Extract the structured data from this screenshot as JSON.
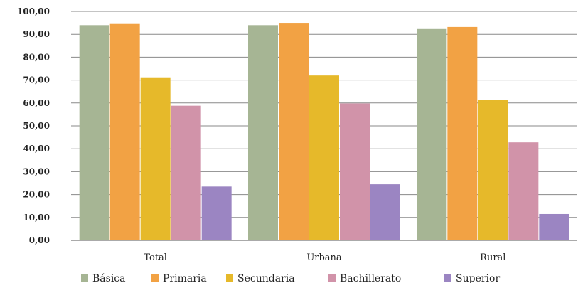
{
  "chart_data": {
    "type": "bar",
    "title": "",
    "xlabel": "",
    "ylabel": "",
    "ylim": [
      0,
      100
    ],
    "yticks": [
      "0,00",
      "10,00",
      "20,00",
      "30,00",
      "40,00",
      "50,00",
      "60,00",
      "70,00",
      "80,00",
      "90,00",
      "100,00"
    ],
    "grid": true,
    "legend_position": "bottom",
    "categories": [
      "Total",
      "Urbana",
      "Rural"
    ],
    "series": [
      {
        "name": "Básica",
        "color": "#a6b594",
        "values": [
          94,
          94,
          92.3
        ]
      },
      {
        "name": "Primaria",
        "color": "#f2a244",
        "values": [
          94.5,
          94.7,
          93.2
        ]
      },
      {
        "name": "Secundaria",
        "color": "#e6b92a",
        "values": [
          71.2,
          72,
          61.2
        ]
      },
      {
        "name": "Bachillerato",
        "color": "#d193a9",
        "values": [
          58.8,
          59.8,
          42.8
        ]
      },
      {
        "name": "Superior",
        "color": "#9b85c2",
        "values": [
          23.5,
          24.5,
          11.5
        ]
      }
    ]
  }
}
